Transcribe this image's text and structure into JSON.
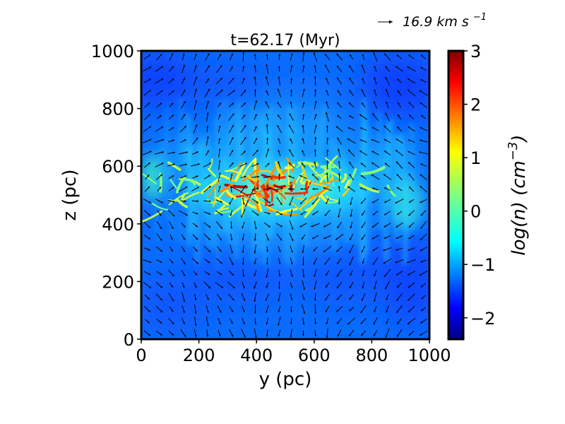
{
  "chart_data": {
    "type": "heatmap",
    "title": "t=62.17 (Myr)",
    "xlabel": "y (pc)",
    "ylabel": "z (pc)",
    "xlim": [
      0,
      1000
    ],
    "ylim": [
      0,
      1000
    ],
    "xticks": [
      "0",
      "200",
      "400",
      "600",
      "800",
      "1000"
    ],
    "yticks": [
      "0",
      "200",
      "400",
      "600",
      "800",
      "1000"
    ],
    "colorbar": {
      "label": "log(n) (cm",
      "label_exponent": "−3",
      "label_close": ")",
      "colormap": "jet",
      "range": [
        -2.4,
        3
      ],
      "ticks": [
        "−2",
        "−1",
        "0",
        "1",
        "2",
        "3"
      ],
      "tick_values": [
        -2,
        -1,
        0,
        1,
        2,
        3
      ]
    },
    "quiver_key": {
      "label": "16.9 km s",
      "label_exponent": "−1"
    },
    "dense_layer_center_z": 520,
    "dense_core_center": [
      450,
      520
    ],
    "dense_core_peak_log_n": 2.6
  },
  "colors": {
    "jet": [
      "#00007f",
      "#0000ff",
      "#007fff",
      "#00ffff",
      "#7fff7f",
      "#ffff00",
      "#ff7f00",
      "#ff0000",
      "#7f0000"
    ],
    "arrow": "#000000",
    "frame": "#000000"
  }
}
